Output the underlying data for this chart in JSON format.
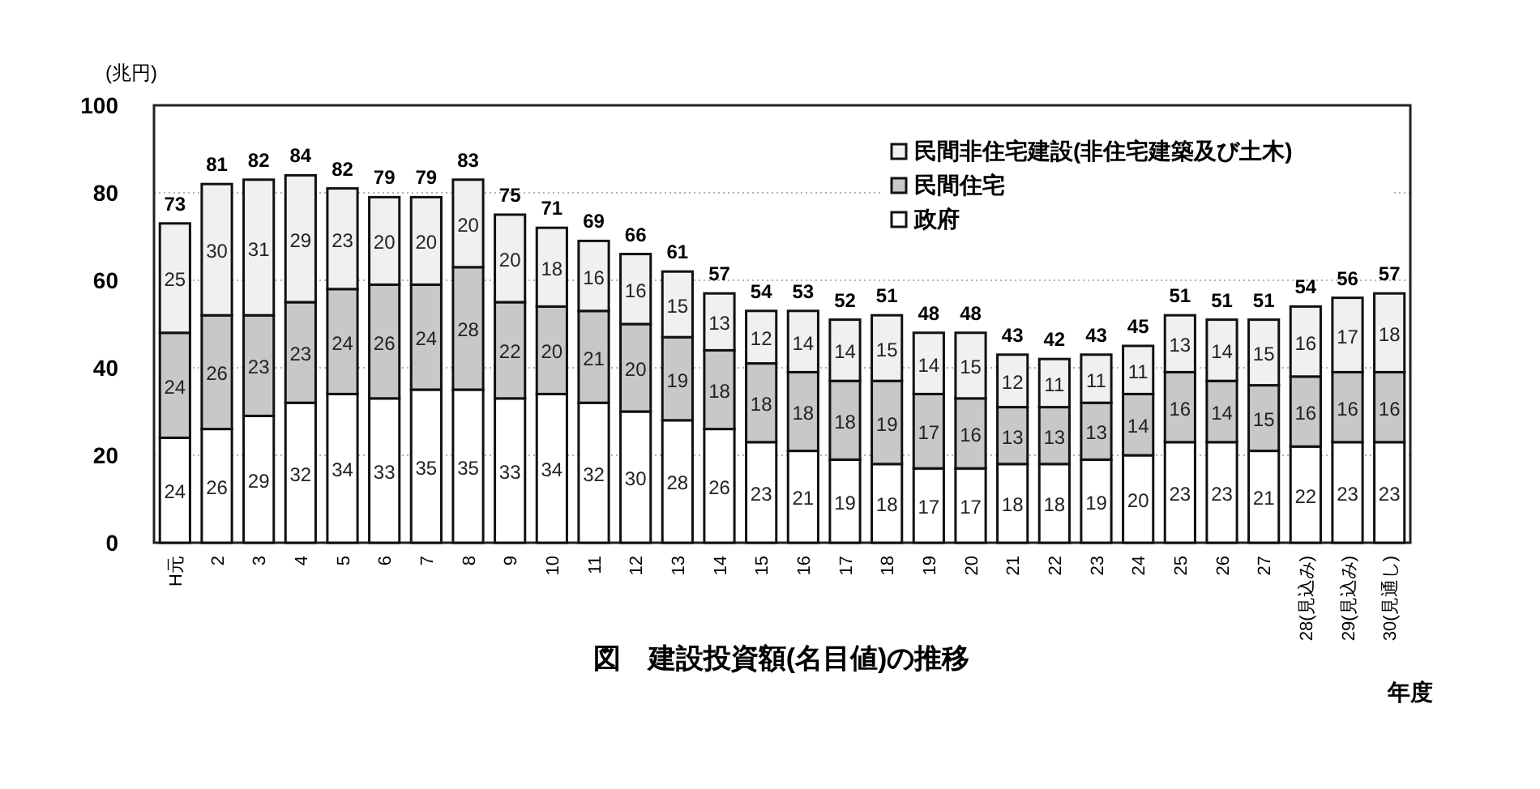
{
  "chart_data": {
    "type": "bar",
    "stacked": true,
    "title": "図　建設投資額(名目値)の推移",
    "xlabel": "年度",
    "ylabel": "(兆円)",
    "categories": [
      "H元",
      "2",
      "3",
      "4",
      "5",
      "6",
      "7",
      "8",
      "9",
      "10",
      "11",
      "12",
      "13",
      "14",
      "15",
      "16",
      "17",
      "18",
      "19",
      "20",
      "21",
      "22",
      "23",
      "24",
      "25",
      "26",
      "27",
      "28(見込み)",
      "29(見込み)",
      "30(見通し)"
    ],
    "series": [
      {
        "name": "政府",
        "color": "#ffffff",
        "values": [
          24,
          26,
          29,
          32,
          34,
          33,
          35,
          35,
          33,
          34,
          32,
          30,
          28,
          26,
          23,
          21,
          19,
          18,
          17,
          17,
          18,
          18,
          19,
          20,
          23,
          23,
          21,
          22,
          23,
          23
        ]
      },
      {
        "name": "民間住宅",
        "color": "#c8c8c8",
        "values": [
          24,
          26,
          23,
          23,
          24,
          26,
          24,
          28,
          22,
          20,
          21,
          20,
          19,
          18,
          18,
          18,
          18,
          19,
          17,
          16,
          13,
          13,
          13,
          14,
          16,
          14,
          15,
          16,
          16,
          16
        ]
      },
      {
        "name": "民間非住宅建設(非住宅建築及び土木)",
        "color": "#f0f0f0",
        "values": [
          25,
          30,
          31,
          29,
          23,
          20,
          20,
          20,
          20,
          18,
          16,
          16,
          15,
          13,
          12,
          14,
          14,
          15,
          14,
          15,
          12,
          11,
          11,
          11,
          13,
          14,
          15,
          16,
          17,
          18
        ]
      }
    ],
    "totals": [
      "73",
      "81",
      "82",
      "84",
      "82",
      "79",
      "79",
      "83",
      "75",
      "71",
      "69",
      "66",
      "61",
      "57",
      "54",
      "53",
      "52",
      "51",
      "48",
      "48",
      "43",
      "42",
      "43",
      "45",
      "51",
      "51",
      "51",
      "54",
      "56",
      "57"
    ],
    "ylim": [
      0,
      100
    ],
    "yticks": [
      0,
      20,
      40,
      60,
      80,
      100
    ],
    "grid": "y",
    "legend": "top right",
    "data_labels": true
  }
}
